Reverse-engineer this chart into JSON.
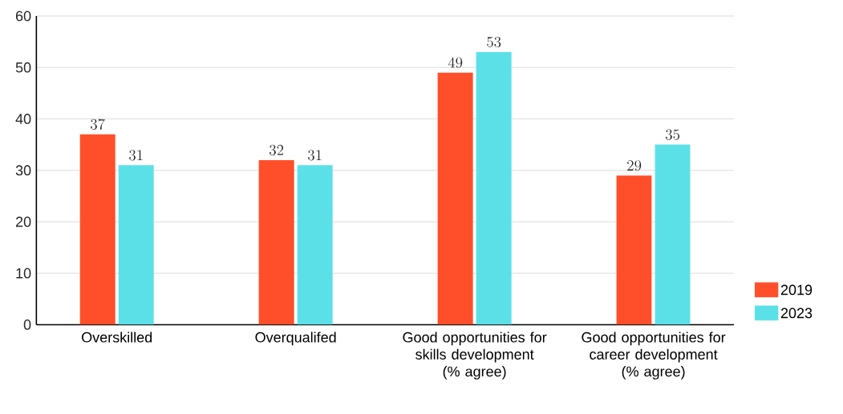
{
  "chart_data": {
    "type": "bar",
    "categories": [
      "Overskilled",
      "Overqualifed",
      "Good opportunities for skills development (% agree)",
      "Good opportunities for career development (% agree)"
    ],
    "series": [
      {
        "name": "2019",
        "color": "#ff4f2a",
        "values": [
          37,
          32,
          49,
          29
        ]
      },
      {
        "name": "2023",
        "color": "#5ce0e8",
        "values": [
          31,
          31,
          53,
          35
        ]
      }
    ],
    "ylim": [
      0,
      60
    ],
    "yticks": [
      0,
      10,
      20,
      30,
      40,
      50,
      60
    ],
    "grid": "y",
    "legend": "bottom right",
    "data_labels": true
  }
}
